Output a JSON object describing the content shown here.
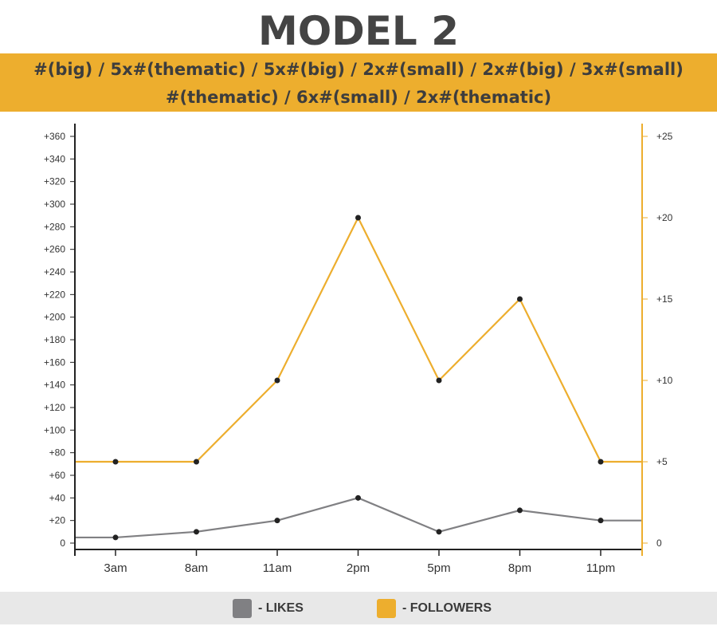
{
  "title": "MODEL 2",
  "banner": {
    "line1": "#(big) / 5x#(thematic) / 5x#(big) / 2x#(small) / 2x#(big) / 3x#(small)",
    "line2": "#(thematic) / 6x#(small) / 2x#(thematic)"
  },
  "colors": {
    "banner": "#EDAE2E",
    "likes": "#808083",
    "followers": "#EDAE2E",
    "points": "#222222"
  },
  "chart_data": {
    "type": "line",
    "categories": [
      "3am",
      "8am",
      "11am",
      "2pm",
      "5pm",
      "8pm",
      "11pm"
    ],
    "series": [
      {
        "name": "- LIKES",
        "axis": "left",
        "values": [
          5,
          10,
          20,
          40,
          10,
          29,
          20
        ]
      },
      {
        "name": "- FOLLOWERS",
        "axis": "right",
        "values": [
          5,
          5,
          10,
          20,
          10,
          15,
          5
        ]
      }
    ],
    "y_left": {
      "ylim": [
        0,
        360
      ],
      "ticks": [
        "0",
        "+20",
        "+40",
        "+60",
        "+80",
        "+100",
        "+120",
        "+140",
        "+160",
        "+180",
        "+200",
        "+220",
        "+240",
        "+260",
        "+280",
        "+300",
        "+320",
        "+340",
        "+360"
      ]
    },
    "y_right": {
      "ylim": [
        0,
        25
      ],
      "ticks": [
        "0",
        "+5",
        "+10",
        "+15",
        "+20",
        "+25"
      ]
    },
    "grid": false,
    "legend": "bottom"
  }
}
